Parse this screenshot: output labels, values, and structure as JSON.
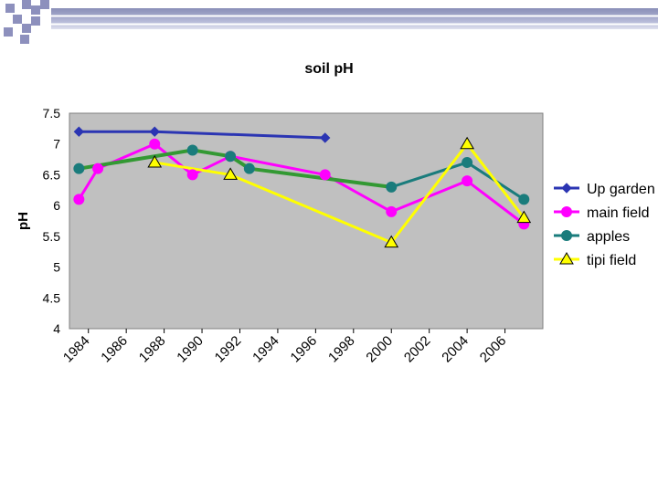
{
  "chart_data": {
    "type": "line",
    "title": "soil pH",
    "xlabel": "",
    "ylabel": "pH",
    "xlim": [
      1983,
      2008
    ],
    "ylim": [
      4,
      7.5
    ],
    "x_ticks": [
      "1984",
      "1986",
      "1988",
      "1990",
      "1992",
      "1994",
      "1996",
      "1998",
      "2000",
      "2002",
      "2004",
      "2006"
    ],
    "y_ticks": [
      "4",
      "4.5",
      "5",
      "5.5",
      "6",
      "6.5",
      "7",
      "7.5"
    ],
    "legend_position": "right",
    "series": [
      {
        "name": "Up garden",
        "color": "#2b35b3",
        "marker": "diamond",
        "points": [
          [
            1983.5,
            7.2
          ],
          [
            1987.5,
            7.2
          ],
          [
            1996.5,
            7.1
          ]
        ]
      },
      {
        "name": "main field",
        "color": "#ff00ff",
        "marker": "circle",
        "points": [
          [
            1983.5,
            6.1
          ],
          [
            1984.5,
            6.6
          ],
          [
            1987.5,
            7.0
          ],
          [
            1989.5,
            6.5
          ],
          [
            1991.5,
            6.8
          ],
          [
            1996.5,
            6.5
          ],
          [
            2000.0,
            5.9
          ],
          [
            2004.0,
            6.4
          ],
          [
            2007.0,
            5.7
          ]
        ]
      },
      {
        "name": "apples",
        "color": "#1a7c7c",
        "marker": "circle",
        "points": [
          [
            1983.5,
            6.6
          ],
          [
            1989.5,
            6.9
          ],
          [
            1991.5,
            6.8
          ],
          [
            1992.5,
            6.6
          ],
          [
            2000.0,
            6.3
          ],
          [
            2004.0,
            6.7
          ],
          [
            2007.0,
            6.1
          ]
        ]
      },
      {
        "name": "tipi field",
        "color": "#ffff00",
        "marker": "triangle",
        "points": [
          [
            1987.5,
            6.7
          ],
          [
            1991.5,
            6.5
          ],
          [
            2000.0,
            5.4
          ],
          [
            2004.0,
            7.0
          ],
          [
            2007.0,
            5.8
          ]
        ]
      }
    ],
    "overlays": [
      {
        "series": "apples",
        "color": "#339933",
        "points": [
          [
            1983.5,
            6.6
          ],
          [
            1989.5,
            6.9
          ],
          [
            1991.5,
            6.8
          ],
          [
            1992.5,
            6.6
          ],
          [
            2000.0,
            6.3
          ]
        ]
      }
    ]
  }
}
